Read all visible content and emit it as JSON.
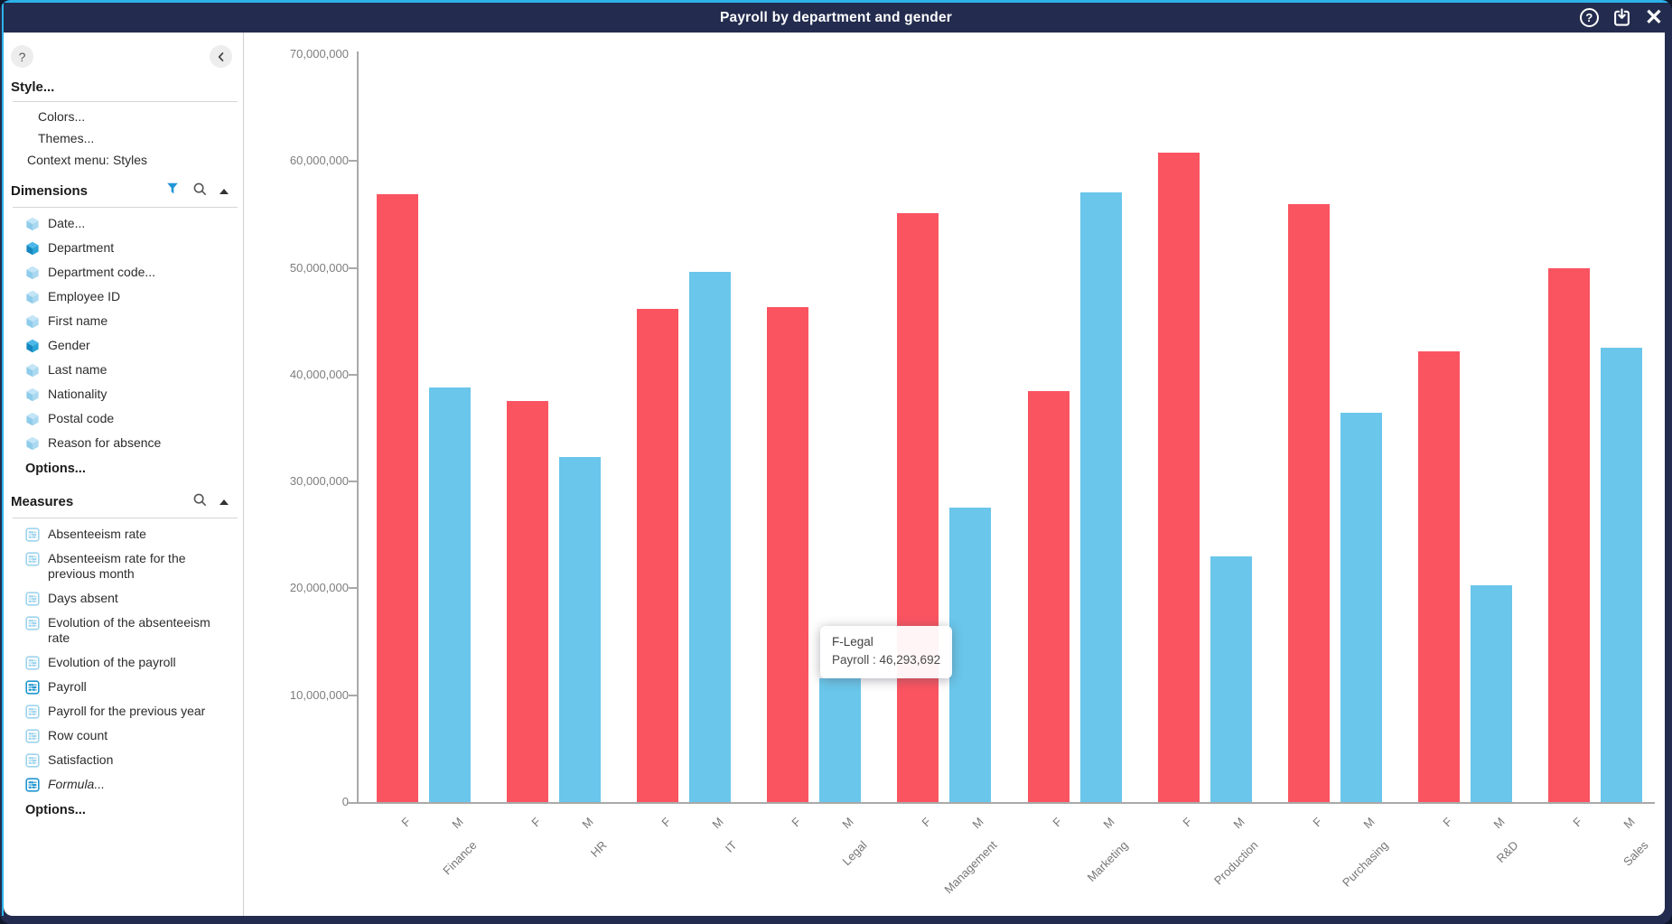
{
  "titlebar": {
    "title": "Payroll by department and gender",
    "icons": [
      "help-icon",
      "save-icon",
      "close-icon"
    ],
    "help_glyph": "?",
    "close_glyph": "✕"
  },
  "sidebar": {
    "help_glyph": "?",
    "style_header": "Style...",
    "style_items": [
      "Colors...",
      "Themes...",
      "Context menu: Styles"
    ],
    "dimensions": {
      "header": "Dimensions",
      "items": [
        {
          "label": "Date...",
          "active": false
        },
        {
          "label": "Department",
          "active": true
        },
        {
          "label": "Department code...",
          "active": false
        },
        {
          "label": "Employee ID",
          "active": false
        },
        {
          "label": "First name",
          "active": false
        },
        {
          "label": "Gender",
          "active": true
        },
        {
          "label": "Last name",
          "active": false
        },
        {
          "label": "Nationality",
          "active": false
        },
        {
          "label": "Postal code",
          "active": false
        },
        {
          "label": "Reason for absence",
          "active": false
        }
      ],
      "options_label": "Options..."
    },
    "measures": {
      "header": "Measures",
      "items": [
        {
          "label": "Absenteeism rate",
          "active": false,
          "italic": false
        },
        {
          "label": "Absenteeism rate for the previous month",
          "active": false,
          "italic": false
        },
        {
          "label": "Days absent",
          "active": false,
          "italic": false
        },
        {
          "label": "Evolution of the absenteeism rate",
          "active": false,
          "italic": false
        },
        {
          "label": "Evolution of the payroll",
          "active": false,
          "italic": false
        },
        {
          "label": "Payroll",
          "active": true,
          "italic": false
        },
        {
          "label": "Payroll for the previous year",
          "active": false,
          "italic": false
        },
        {
          "label": "Row count",
          "active": false,
          "italic": false
        },
        {
          "label": "Satisfaction",
          "active": false,
          "italic": false
        },
        {
          "label": "Formula...",
          "active": true,
          "italic": true
        }
      ],
      "options_label": "Options..."
    }
  },
  "tooltip": {
    "title": "F-Legal",
    "value_line": "Payroll : 46,293,692"
  },
  "chart_data": {
    "type": "bar",
    "title": "Payroll by department and gender",
    "categories": [
      "Finance",
      "HR",
      "IT",
      "Legal",
      "Management",
      "Marketing",
      "Production",
      "Purchasing",
      "R&D",
      "Sales"
    ],
    "subgroup_labels": [
      "F",
      "M"
    ],
    "series": [
      {
        "name": "F",
        "color": "#fa5461",
        "values": [
          56900000,
          37500000,
          46200000,
          46293692,
          55100000,
          38500000,
          60800000,
          56000000,
          42200000,
          50000000
        ]
      },
      {
        "name": "M",
        "color": "#6ac6ea",
        "values": [
          38800000,
          32300000,
          49600000,
          11600000,
          27600000,
          57100000,
          23000000,
          36400000,
          20300000,
          42500000
        ]
      }
    ],
    "xlabel": "",
    "ylabel": "Payroll",
    "ylim": [
      0,
      70000000
    ],
    "ytick_step": 10000000,
    "ytick_labels": [
      "0",
      "10,000,000",
      "20,000,000",
      "30,000,000",
      "40,000,000",
      "50,000,000",
      "60,000,000",
      "70,000,000"
    ],
    "grid": false,
    "legend": "none"
  },
  "colors": {
    "frame_navy": "#232c4e",
    "accent_cyan": "#2cb3e9",
    "bar_female": "#fa5461",
    "bar_male": "#6ac6ea",
    "axis_gray": "#a9a9a9",
    "icon_blue_active": "#2196d0",
    "icon_blue_light": "#9fd4ee"
  }
}
